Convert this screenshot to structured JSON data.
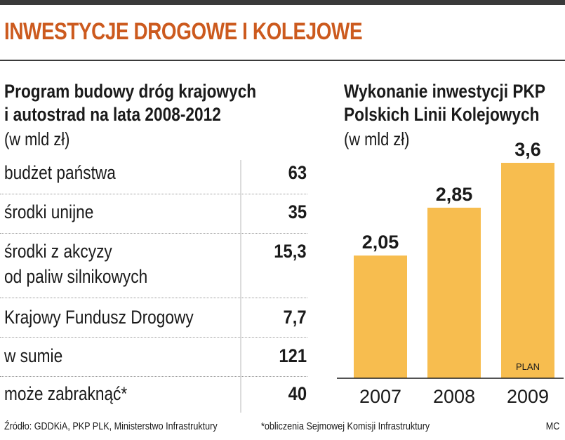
{
  "header": {
    "title": "INWESTYCJE DROGOWE I KOLEJOWE"
  },
  "table_panel": {
    "title_line1": "Program budowy dróg krajowych",
    "title_line2": "i autostrad na lata 2008-2012",
    "unit": "(w mld zł)",
    "rows": [
      {
        "label": "budżet państwa",
        "value": "63"
      },
      {
        "label": "środki unijne",
        "value": "35"
      },
      {
        "label": "środki z akcyzy",
        "label2": "od paliw silnikowych",
        "value": "15,3"
      },
      {
        "label": "Krajowy Fundusz Drogowy",
        "value": "7,7"
      },
      {
        "label": "w sumie",
        "value": "121"
      },
      {
        "label": "może zabraknąć*",
        "value": "40"
      }
    ]
  },
  "chart_panel": {
    "title_line1": "Wykonanie inwestycji PKP",
    "title_line2": "Polskich Linii Kolejowych",
    "unit": "(w mld zł)"
  },
  "chart_data": {
    "type": "bar",
    "title": "Wykonanie inwestycji PKP Polskich Linii Kolejowych",
    "ylabel": "(w mld zł)",
    "categories": [
      "2007",
      "2008",
      "2009"
    ],
    "values": [
      2.05,
      2.85,
      3.6
    ],
    "value_labels": [
      "2,05",
      "2,85",
      "3,6"
    ],
    "annotations": [
      {
        "category": "2009",
        "text": "PLAN"
      }
    ],
    "bar_color": "#f7bd4f",
    "ylim": [
      0,
      3.6
    ],
    "grid": false,
    "legend": "none"
  },
  "footer": {
    "source": "Źródło: GDDKiA, PKP PLK, Ministerstwo Infrastruktury",
    "note": "*obliczenia Sejmowej Komisji Infrastruktury",
    "author": "MC"
  },
  "colors": {
    "title_accent": "#cc5a1e",
    "bar": "#f7bd4f",
    "rule": "#3a3a3a"
  }
}
